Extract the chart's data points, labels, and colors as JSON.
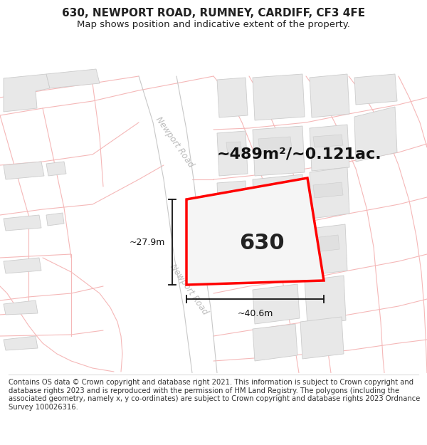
{
  "title_line1": "630, NEWPORT ROAD, RUMNEY, CARDIFF, CF3 4FE",
  "title_line2": "Map shows position and indicative extent of the property.",
  "footer_text": "Contains OS data © Crown copyright and database right 2021. This information is subject to Crown copyright and database rights 2023 and is reproduced with the permission of HM Land Registry. The polygons (including the associated geometry, namely x, y co-ordinates) are subject to Crown copyright and database rights 2023 Ordnance Survey 100026316.",
  "area_label": "~489m²/~0.121ac.",
  "width_label": "~40.6m",
  "height_label": "~27.9m",
  "plot_number": "630",
  "title_fontsize": 11,
  "subtitle_fontsize": 9.5,
  "footer_fontsize": 7.2,
  "road_line_color": "#f5b8b8",
  "road_label_color": "#bbbbbb",
  "building_fc": "#e8e8e8",
  "building_ec": "#cccccc",
  "newport_road_color": "#c8c8c8",
  "plot_red": "#ff0000",
  "plot_fill": "#f5f5f5",
  "dim_color": "#111111",
  "area_fontsize": 16,
  "plot_label_fontsize": 22,
  "dim_fontsize": 9,
  "road_label_fontsize": 8.5
}
